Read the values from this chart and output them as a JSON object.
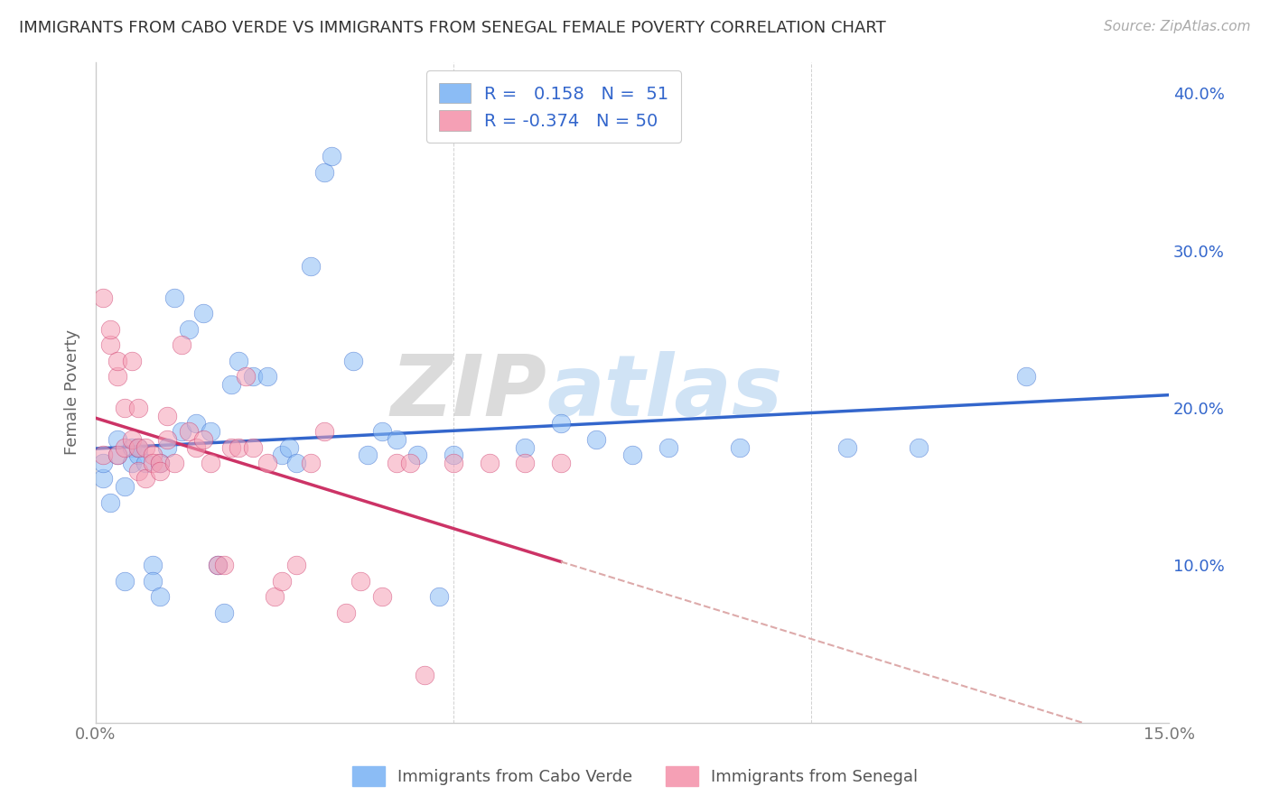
{
  "title": "IMMIGRANTS FROM CABO VERDE VS IMMIGRANTS FROM SENEGAL FEMALE POVERTY CORRELATION CHART",
  "source": "Source: ZipAtlas.com",
  "ylabel": "Female Poverty",
  "xlim": [
    0,
    0.15
  ],
  "ylim": [
    0,
    0.42
  ],
  "x_ticks": [
    0.0,
    0.05,
    0.1,
    0.15
  ],
  "x_tick_labels": [
    "0.0%",
    "",
    "",
    "15.0%"
  ],
  "y_ticks": [
    0.0,
    0.1,
    0.2,
    0.3,
    0.4
  ],
  "y_tick_labels": [
    "",
    "10.0%",
    "20.0%",
    "30.0%",
    "40.0%"
  ],
  "cabo_verde_color": "#8bbcf5",
  "senegal_color": "#f5a0b5",
  "cabo_verde_R": 0.158,
  "cabo_verde_N": 51,
  "senegal_R": -0.374,
  "senegal_N": 50,
  "cabo_verde_x": [
    0.001,
    0.001,
    0.002,
    0.003,
    0.003,
    0.004,
    0.004,
    0.005,
    0.005,
    0.006,
    0.006,
    0.007,
    0.008,
    0.008,
    0.009,
    0.009,
    0.01,
    0.011,
    0.012,
    0.013,
    0.014,
    0.015,
    0.016,
    0.017,
    0.018,
    0.019,
    0.02,
    0.022,
    0.024,
    0.026,
    0.027,
    0.028,
    0.03,
    0.032,
    0.033,
    0.036,
    0.038,
    0.04,
    0.042,
    0.045,
    0.048,
    0.05,
    0.06,
    0.065,
    0.07,
    0.075,
    0.08,
    0.09,
    0.105,
    0.115,
    0.13
  ],
  "cabo_verde_y": [
    0.155,
    0.165,
    0.14,
    0.17,
    0.18,
    0.15,
    0.09,
    0.175,
    0.165,
    0.17,
    0.175,
    0.165,
    0.1,
    0.09,
    0.08,
    0.165,
    0.175,
    0.27,
    0.185,
    0.25,
    0.19,
    0.26,
    0.185,
    0.1,
    0.07,
    0.215,
    0.23,
    0.22,
    0.22,
    0.17,
    0.175,
    0.165,
    0.29,
    0.35,
    0.36,
    0.23,
    0.17,
    0.185,
    0.18,
    0.17,
    0.08,
    0.17,
    0.175,
    0.19,
    0.18,
    0.17,
    0.175,
    0.175,
    0.175,
    0.175,
    0.22
  ],
  "senegal_x": [
    0.001,
    0.001,
    0.002,
    0.002,
    0.003,
    0.003,
    0.003,
    0.004,
    0.004,
    0.005,
    0.005,
    0.006,
    0.006,
    0.006,
    0.007,
    0.007,
    0.008,
    0.008,
    0.009,
    0.009,
    0.01,
    0.01,
    0.011,
    0.012,
    0.013,
    0.014,
    0.015,
    0.016,
    0.017,
    0.018,
    0.019,
    0.02,
    0.021,
    0.022,
    0.024,
    0.025,
    0.026,
    0.028,
    0.03,
    0.032,
    0.035,
    0.037,
    0.04,
    0.042,
    0.044,
    0.046,
    0.05,
    0.055,
    0.06,
    0.065
  ],
  "senegal_y": [
    0.17,
    0.27,
    0.24,
    0.25,
    0.17,
    0.22,
    0.23,
    0.175,
    0.2,
    0.18,
    0.23,
    0.16,
    0.175,
    0.2,
    0.155,
    0.175,
    0.17,
    0.165,
    0.165,
    0.16,
    0.195,
    0.18,
    0.165,
    0.24,
    0.185,
    0.175,
    0.18,
    0.165,
    0.1,
    0.1,
    0.175,
    0.175,
    0.22,
    0.175,
    0.165,
    0.08,
    0.09,
    0.1,
    0.165,
    0.185,
    0.07,
    0.09,
    0.08,
    0.165,
    0.165,
    0.03,
    0.165,
    0.165,
    0.165,
    0.165
  ],
  "watermark_zip": "ZIP",
  "watermark_atlas": "atlas",
  "background_color": "#ffffff",
  "grid_color": "#cccccc",
  "cabo_line_color": "#3366cc",
  "senegal_line_solid_color": "#cc3366",
  "senegal_line_dash_color": "#ddaaaa",
  "legend_text_color": "#3366cc",
  "legend_rn_color": "#333333"
}
